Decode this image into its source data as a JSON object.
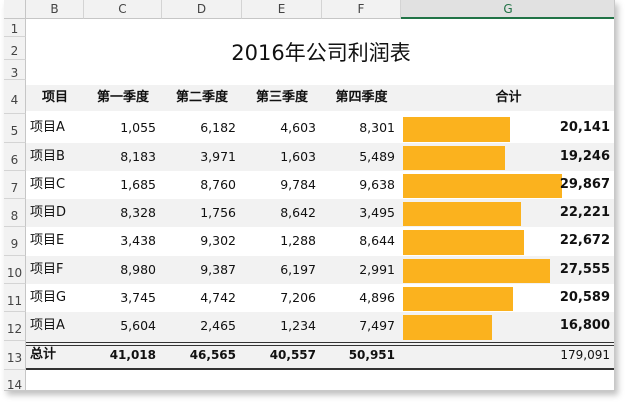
{
  "columns": [
    "B",
    "C",
    "D",
    "E",
    "F",
    "G"
  ],
  "rows": [
    "1",
    "2",
    "3",
    "4",
    "5",
    "6",
    "7",
    "8",
    "9",
    "10",
    "11",
    "12",
    "13",
    "14"
  ],
  "title": "2016年公司利润表",
  "headers": [
    "项目",
    "第一季度",
    "第二季度",
    "第三季度",
    "第四季度",
    "合计"
  ],
  "data": [
    {
      "name": "项目A",
      "q1": "1,055",
      "q2": "6,182",
      "q3": "4,603",
      "q4": "8,301",
      "total": "20,141",
      "total_value": 20141
    },
    {
      "name": "项目B",
      "q1": "8,183",
      "q2": "3,971",
      "q3": "1,603",
      "q4": "5,489",
      "total": "19,246",
      "total_value": 19246
    },
    {
      "name": "项目C",
      "q1": "1,685",
      "q2": "8,760",
      "q3": "9,784",
      "q4": "9,638",
      "total": "29,867",
      "total_value": 29867
    },
    {
      "name": "项目D",
      "q1": "8,328",
      "q2": "1,756",
      "q3": "8,642",
      "q4": "3,495",
      "total": "22,221",
      "total_value": 22221
    },
    {
      "name": "项目E",
      "q1": "3,438",
      "q2": "9,302",
      "q3": "1,288",
      "q4": "8,644",
      "total": "22,672",
      "total_value": 22672
    },
    {
      "name": "项目F",
      "q1": "8,980",
      "q2": "9,387",
      "q3": "6,197",
      "q4": "2,991",
      "total": "27,555",
      "total_value": 27555
    },
    {
      "name": "项目G",
      "q1": "3,745",
      "q2": "4,742",
      "q3": "7,206",
      "q4": "4,896",
      "total": "20,589",
      "total_value": 20589
    },
    {
      "name": "项目A",
      "q1": "5,604",
      "q2": "2,465",
      "q3": "1,234",
      "q4": "7,497",
      "total": "16,800",
      "total_value": 16800
    }
  ],
  "summary": {
    "name": "总计",
    "q1": "41,018",
    "q2": "46,565",
    "q3": "40,557",
    "q4": "50,951",
    "total": "179,091"
  },
  "bar_max": 29867,
  "colors": {
    "bar": "#fbb21e",
    "header_bg": "#f2f2f2",
    "selected_col": "#217346"
  }
}
